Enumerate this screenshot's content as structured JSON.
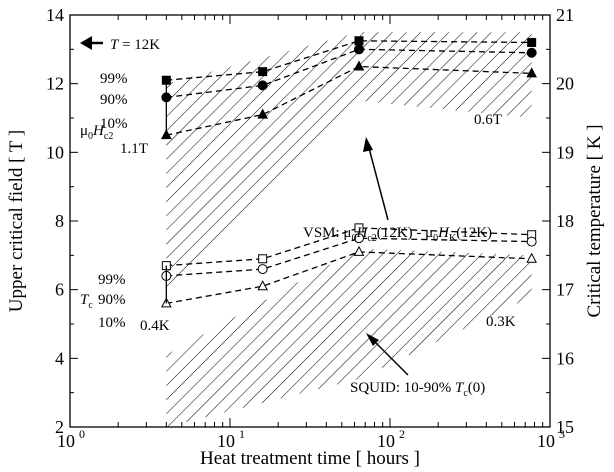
{
  "chart_data": {
    "type": "line",
    "x_scale": "log",
    "xlim": [
      1,
      1000
    ],
    "xlabel": "Heat treatment time [ hours ]",
    "ylabel_left": "Upper critical field [ T ]",
    "ylabel_right": "Critical temperature [ K ]",
    "ylim_left": [
      2,
      14
    ],
    "ylim_right": [
      15,
      21
    ],
    "xticks": [
      {
        "value": 1,
        "label": "10",
        "exp": "0"
      },
      {
        "value": 10,
        "label": "10",
        "exp": "1"
      },
      {
        "value": 100,
        "label": "10",
        "exp": "2"
      },
      {
        "value": 1000,
        "label": "10",
        "exp": "3"
      }
    ],
    "yticks_left": [
      "2",
      "4",
      "6",
      "8",
      "10",
      "12",
      "14"
    ],
    "yticks_right": [
      "15",
      "16",
      "17",
      "18",
      "19",
      "20",
      "21"
    ],
    "x": [
      4,
      16,
      64,
      768
    ],
    "series": [
      {
        "group": "Hc2",
        "name": "99%",
        "marker": "filled-square",
        "values": [
          12.1,
          12.35,
          13.25,
          13.2
        ]
      },
      {
        "group": "Hc2",
        "name": "90%",
        "marker": "filled-circle",
        "values": [
          11.6,
          11.95,
          13.0,
          12.9
        ]
      },
      {
        "group": "Hc2",
        "name": "10%",
        "marker": "filled-triangle",
        "values": [
          10.5,
          11.1,
          12.5,
          12.3
        ]
      },
      {
        "group": "Tc",
        "name": "99%",
        "marker": "open-square",
        "values": [
          17.35,
          17.45,
          17.9,
          17.8
        ]
      },
      {
        "group": "Tc",
        "name": "90%",
        "marker": "open-circle",
        "values": [
          17.2,
          17.3,
          17.75,
          17.7
        ]
      },
      {
        "group": "Tc",
        "name": "10%",
        "marker": "open-triangle",
        "values": [
          16.8,
          17.05,
          17.55,
          17.45
        ]
      }
    ],
    "hatched_regions": [
      {
        "name": "vsm",
        "x": [
          4,
          64,
          768,
          768,
          64,
          4
        ],
        "y": [
          12.0,
          13.5,
          13.5,
          11.0,
          11.5,
          6.0
        ]
      },
      {
        "name": "squid",
        "x": [
          4,
          64,
          768,
          768,
          64,
          4
        ],
        "y": [
          4.1,
          7.2,
          7.0,
          5.8,
          3.4,
          2.0
        ]
      }
    ],
    "annotations": {
      "temp_note": {
        "prefix": "T",
        "suffix": " = 12K"
      },
      "hc2_group": {
        "a": "μ",
        "b": "0",
        "c": "H",
        "d": "c2"
      },
      "tc_group": {
        "a": "T",
        "b": "c"
      },
      "hc2_labels": [
        "99%",
        "90%",
        "10%"
      ],
      "tc_labels": [
        "99%",
        "90%",
        "10%"
      ],
      "width_left_hc2": "1.1T",
      "width_right_hc2": "0.6T",
      "width_left_tc": "0.4K",
      "width_right_tc": "0.3K",
      "vsm": {
        "p1": "VSM: μ",
        "s1": "0",
        "p2": "H",
        "s2": "c2",
        "p3": "(12K) - μ",
        "s3": "0",
        "p4": "H",
        "s4": "K",
        "p5": "(12K)"
      },
      "squid": {
        "p1": "SQUID: 10-90% ",
        "p2": "T",
        "s2": "c",
        "p3": "(0)"
      }
    }
  }
}
